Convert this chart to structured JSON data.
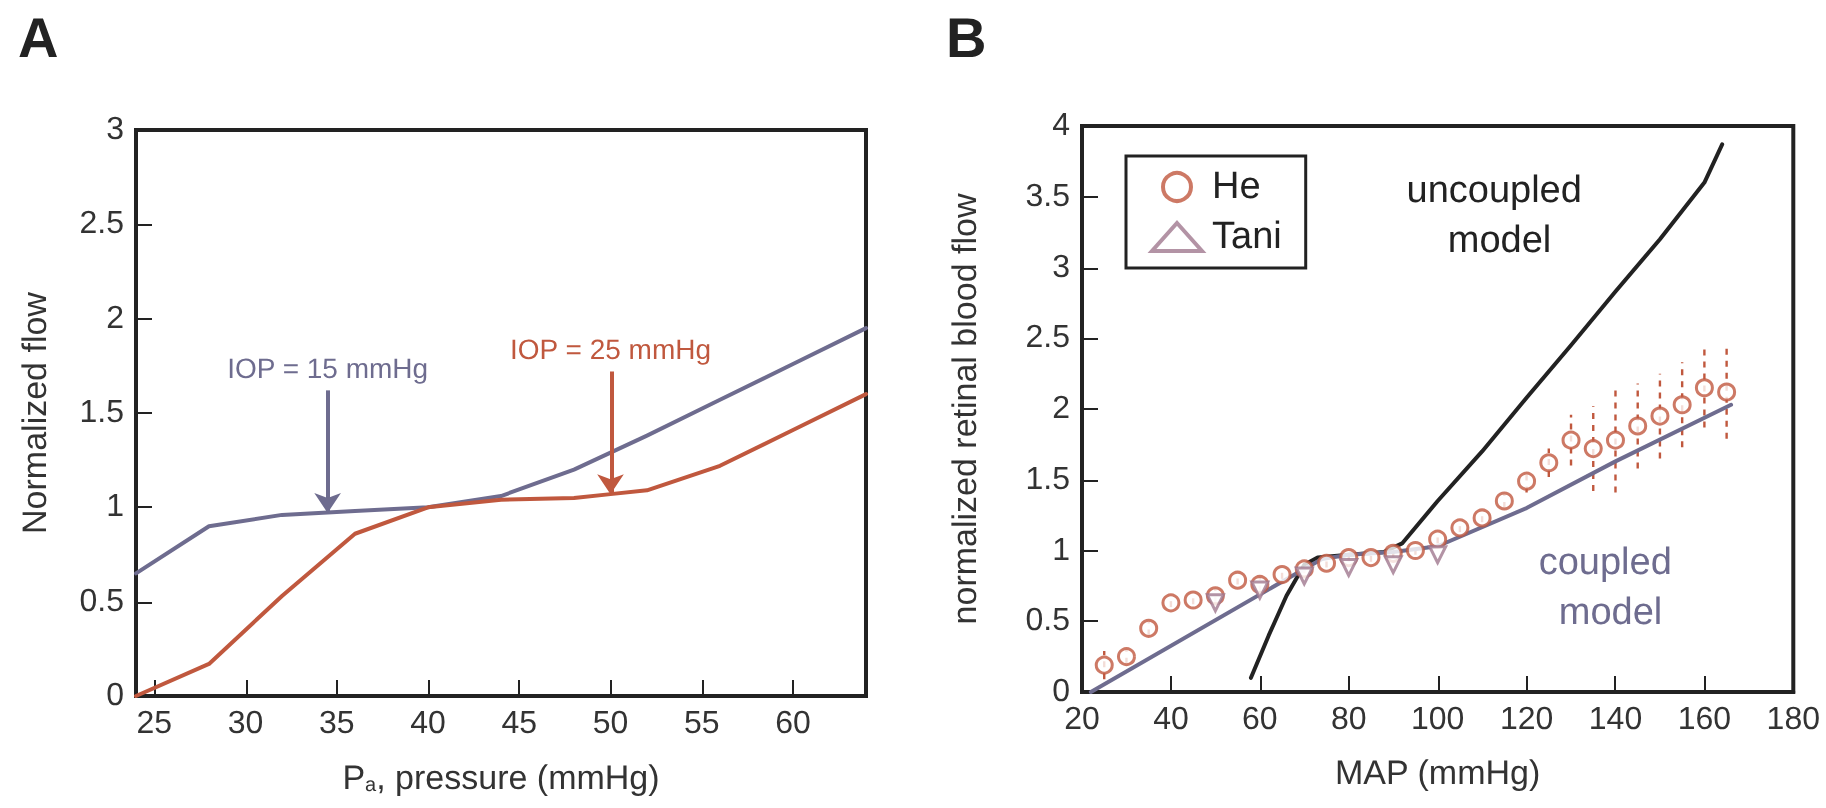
{
  "chart_data": [
    {
      "type": "line",
      "title": "A",
      "xlabel": "P$_{a}$, pressure (mmHg)",
      "ylabel": "Normalized flow",
      "xlim": [
        24,
        64
      ],
      "xticks": [
        25,
        30,
        35,
        40,
        45,
        50,
        55,
        60
      ],
      "ylim": [
        0,
        3
      ],
      "yticks": [
        0,
        0.5,
        1,
        1.5,
        2,
        2.5,
        3
      ],
      "grid": false,
      "legend": false,
      "marker": "none",
      "line_style": "solid",
      "series": [
        {
          "color": "#6e6c8f",
          "x": [
            24,
            28,
            32,
            36,
            40,
            44,
            48,
            52,
            56,
            60,
            64
          ],
          "values": [
            0.65,
            0.9,
            0.96,
            0.98,
            1.0,
            1.06,
            1.2,
            1.38,
            1.57,
            1.76,
            1.95
          ]
        },
        {
          "color": "#c0583e",
          "x": [
            24,
            28,
            32,
            36,
            40,
            44,
            48,
            50,
            52,
            56,
            60,
            64
          ],
          "values": [
            0,
            0.17,
            0.53,
            0.86,
            1.0,
            1.04,
            1.05,
            1.07,
            1.09,
            1.22,
            1.41,
            1.6
          ]
        }
      ],
      "annotations": [
        {
          "text": "IOP = 15 mmHg",
          "x": 34.5,
          "y": 0.97
        },
        {
          "text": "IOP = 25 mmHg",
          "x": 50,
          "y": 1.07
        }
      ]
    },
    {
      "type": "scatter",
      "title": "B",
      "xlabel": "MAP (mmHg)",
      "ylabel": "normalized retinal blood flow",
      "xlim": [
        20,
        180
      ],
      "xticks": [
        20,
        40,
        60,
        80,
        100,
        120,
        140,
        160,
        180
      ],
      "ylim": [
        0,
        4
      ],
      "yticks": [
        0,
        0.5,
        1,
        1.5,
        2,
        2.5,
        3,
        3.5,
        4
      ],
      "grid": false,
      "legend": "top left",
      "series": [
        {
          "name": "He",
          "marker": "circle",
          "color": "#c0583e",
          "x": [
            25,
            30,
            35,
            40,
            45,
            50,
            55,
            60,
            65,
            70,
            75,
            80,
            85,
            90,
            95,
            100,
            105,
            110,
            115,
            120,
            125,
            130,
            135,
            140,
            145,
            150,
            155,
            160,
            165
          ],
          "values": [
            0.19,
            0.25,
            0.45,
            0.63,
            0.65,
            0.68,
            0.79,
            0.76,
            0.83,
            0.87,
            0.91,
            0.95,
            0.95,
            0.98,
            1.0,
            1.08,
            1.16,
            1.23,
            1.35,
            1.49,
            1.62,
            1.78,
            1.72,
            1.78,
            1.88,
            1.95,
            2.03,
            2.15,
            2.12
          ],
          "errors": [
            0.1,
            0.05,
            0.05,
            0.03,
            0.03,
            0.05,
            0.03,
            0.05,
            0.03,
            0.03,
            0.03,
            0.03,
            0.03,
            0.03,
            0.03,
            0.03,
            0.03,
            0.03,
            0.05,
            0.08,
            0.1,
            0.18,
            0.3,
            0.37,
            0.3,
            0.3,
            0.3,
            0.28,
            0.33
          ]
        },
        {
          "name": "Tani",
          "marker": "triangle",
          "color": "#a0788e",
          "x": [
            50,
            60,
            70,
            80,
            90,
            100
          ],
          "values": [
            0.63,
            0.72,
            0.82,
            0.88,
            0.9,
            0.97
          ]
        },
        {
          "name": "uncoupled model",
          "type": "line",
          "marker": "none",
          "line_style": "solid",
          "color": "#222222",
          "x": [
            58,
            62,
            66,
            70,
            73,
            80,
            88,
            92,
            100,
            110,
            120,
            130,
            140,
            150,
            160,
            164
          ],
          "values": [
            0.1,
            0.4,
            0.68,
            0.9,
            0.95,
            0.97,
            0.99,
            1.05,
            1.35,
            1.7,
            2.08,
            2.45,
            2.83,
            3.2,
            3.6,
            3.87
          ]
        },
        {
          "name": "coupled model",
          "type": "line",
          "marker": "none",
          "line_style": "solid",
          "color": "#6e6c8f",
          "x": [
            22,
            70,
            74,
            80,
            90,
            100,
            120,
            140,
            166
          ],
          "values": [
            0,
            0.87,
            0.94,
            0.97,
            0.99,
            1.03,
            1.3,
            1.63,
            2.03
          ]
        }
      ]
    }
  ]
}
